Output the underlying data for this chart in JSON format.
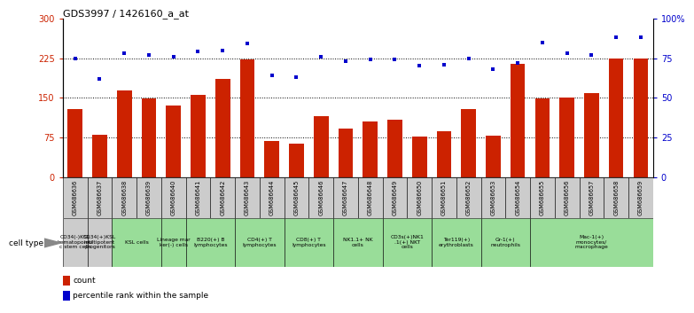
{
  "title": "GDS3997 / 1426160_a_at",
  "gsm_ids": [
    "GSM686636",
    "GSM686637",
    "GSM686638",
    "GSM686639",
    "GSM686640",
    "GSM686641",
    "GSM686642",
    "GSM686643",
    "GSM686644",
    "GSM686645",
    "GSM686646",
    "GSM686647",
    "GSM686648",
    "GSM686649",
    "GSM686650",
    "GSM686651",
    "GSM686652",
    "GSM686653",
    "GSM686654",
    "GSM686655",
    "GSM686656",
    "GSM686657",
    "GSM686658",
    "GSM686659"
  ],
  "counts": [
    128,
    80,
    163,
    148,
    135,
    155,
    185,
    222,
    68,
    63,
    115,
    92,
    105,
    108,
    76,
    86,
    128,
    78,
    215,
    148,
    150,
    158,
    225,
    225
  ],
  "percentiles": [
    75,
    62,
    78,
    77,
    76,
    79,
    80,
    84,
    64,
    63,
    76,
    73,
    74,
    74,
    70,
    71,
    75,
    68,
    72,
    85,
    78,
    77,
    88,
    88
  ],
  "bar_color": "#cc2200",
  "dot_color": "#0000cc",
  "ylim_left": [
    0,
    300
  ],
  "ylim_right": [
    0,
    100
  ],
  "yticks_left": [
    0,
    75,
    150,
    225,
    300
  ],
  "yticks_right": [
    0,
    25,
    50,
    75,
    100
  ],
  "ytick_labels_right": [
    "0",
    "25",
    "50",
    "75",
    "100%"
  ],
  "hlines": [
    75,
    150,
    225
  ],
  "cell_type_groups": [
    {
      "label": "CD34(-)KSL\nhematopoieti\nc stem cells",
      "start": 0,
      "end": 1,
      "color": "#cccccc"
    },
    {
      "label": "CD34(+)KSL\nmultipotent\nprogenitors",
      "start": 1,
      "end": 2,
      "color": "#cccccc"
    },
    {
      "label": "KSL cells",
      "start": 2,
      "end": 4,
      "color": "#99dd99"
    },
    {
      "label": "Lineage mar\nker(-) cells",
      "start": 4,
      "end": 5,
      "color": "#99dd99"
    },
    {
      "label": "B220(+) B\nlymphocytes",
      "start": 5,
      "end": 7,
      "color": "#99dd99"
    },
    {
      "label": "CD4(+) T\nlymphocytes",
      "start": 7,
      "end": 9,
      "color": "#99dd99"
    },
    {
      "label": "CD8(+) T\nlymphocytes",
      "start": 9,
      "end": 11,
      "color": "#99dd99"
    },
    {
      "label": "NK1.1+ NK\ncells",
      "start": 11,
      "end": 13,
      "color": "#99dd99"
    },
    {
      "label": "CD3s(+)NK1\n.1(+) NKT\ncells",
      "start": 13,
      "end": 15,
      "color": "#99dd99"
    },
    {
      "label": "Ter119(+)\nerythroblasts",
      "start": 15,
      "end": 17,
      "color": "#99dd99"
    },
    {
      "label": "Gr-1(+)\nneutrophils",
      "start": 17,
      "end": 19,
      "color": "#99dd99"
    },
    {
      "label": "Mac-1(+)\nmonocytes/\nmacrophage",
      "start": 19,
      "end": 24,
      "color": "#99dd99"
    }
  ],
  "gsm_box_color": "#cccccc",
  "bg_color": "#ffffff",
  "legend_count_color": "#cc2200",
  "legend_dot_color": "#0000cc"
}
